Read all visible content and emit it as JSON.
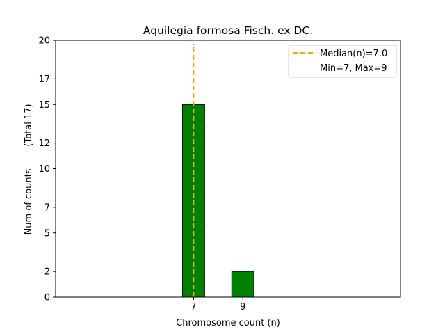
{
  "chart_data": {
    "type": "bar",
    "title": "Aquilegia formosa Fisch. ex DC.",
    "xlabel": "Chromosome count (n)",
    "ylabel": "Num of counts",
    "ylabel_total": "(Total 17)",
    "x_values": [
      7,
      9
    ],
    "values": [
      15,
      2
    ],
    "bar_color": "#008000",
    "bar_edge_color": "#000000",
    "xticks": [
      "7",
      "9"
    ],
    "yticks": [
      0,
      2,
      5,
      7,
      10,
      12,
      15,
      17,
      20
    ],
    "ytick_labels": [
      "0",
      "2",
      "5",
      "7",
      "10",
      "12",
      "15",
      "17",
      "20"
    ],
    "ylim": [
      0,
      20
    ],
    "xlim": [
      1.4,
      15.4
    ],
    "baseline_span": [
      1.4,
      14.0
    ],
    "median": {
      "value": 7.0,
      "color": "#FFA500",
      "label": "Median(n)=7.0"
    },
    "range_label": "Min=7, Max=9",
    "legend_position": "top-right",
    "grid": false
  }
}
